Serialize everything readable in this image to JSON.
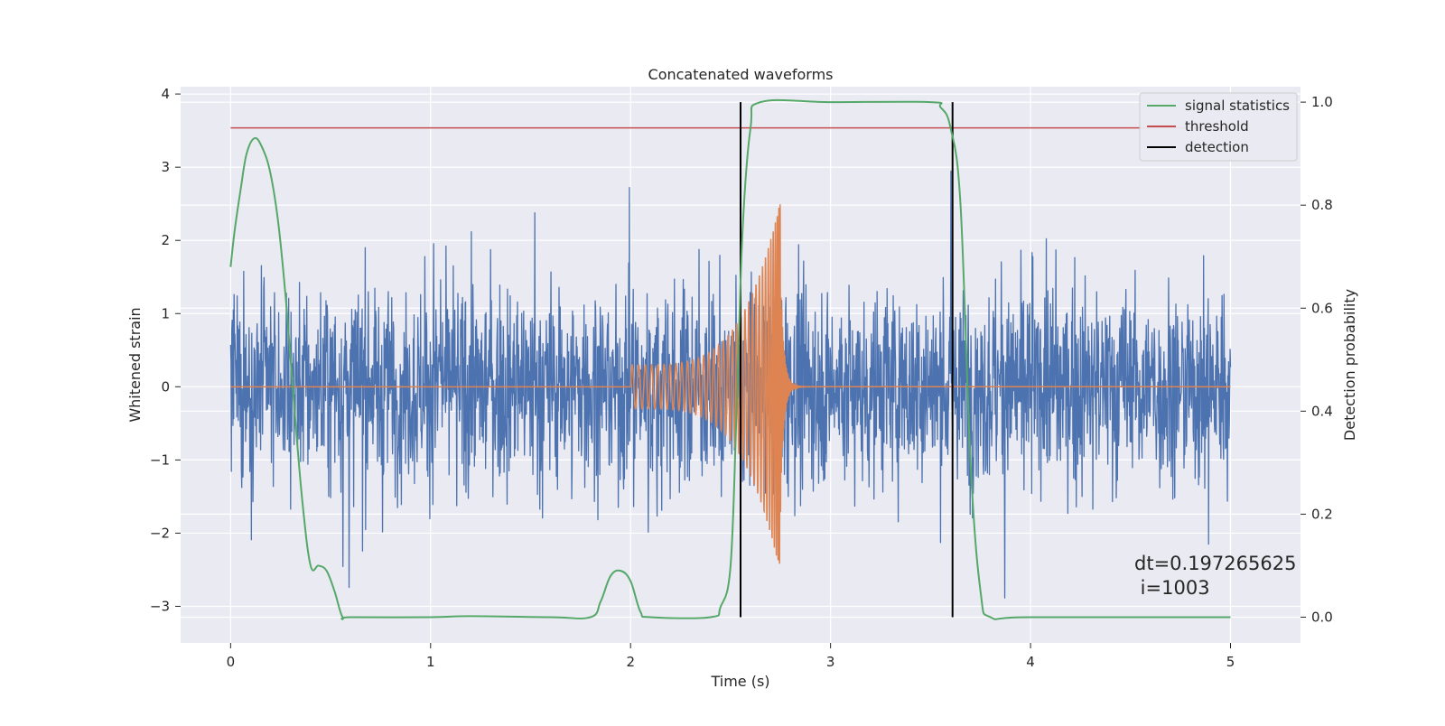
{
  "chart_data": {
    "type": "line",
    "title": "Concatenated waveforms",
    "xlabel": "Time (s)",
    "ylabel": "Whitened strain",
    "y2label": "Detection probability",
    "xlim": [
      -0.25,
      5.35
    ],
    "ylim": [
      -3.5,
      4.1
    ],
    "y2lim": [
      -0.05,
      1.03
    ],
    "x_ticks": [
      0,
      1,
      2,
      3,
      4,
      5
    ],
    "y_ticks": [
      -3,
      -2,
      -1,
      0,
      1,
      2,
      3,
      4
    ],
    "y2_ticks": [
      0.0,
      0.2,
      0.4,
      0.6,
      0.8,
      1.0
    ],
    "x_tick_labels": [
      "0",
      "1",
      "2",
      "3",
      "4",
      "5"
    ],
    "y_tick_labels": [
      "−3",
      "−2",
      "−1",
      "0",
      "1",
      "2",
      "3",
      "4"
    ],
    "y2_tick_labels": [
      "0.0",
      "0.2",
      "0.4",
      "0.6",
      "0.8",
      "1.0"
    ],
    "grid": true,
    "legend_position": "top-right",
    "colors": {
      "noise": "#4c72b0",
      "waveform": "#dd8452",
      "signal_statistics": "#55a868",
      "threshold": "#c44e52",
      "detection": "#000000",
      "background": "#eaeaf2",
      "grid": "#ffffff"
    },
    "series": [
      {
        "name": "signal statistics",
        "axis": "right",
        "x": [
          0,
          0.02,
          0.05,
          0.08,
          0.12,
          0.16,
          0.2,
          0.24,
          0.28,
          0.32,
          0.36,
          0.4,
          0.44,
          0.48,
          0.52,
          0.56,
          0.6,
          1.0,
          1.2,
          1.6,
          1.8,
          1.85,
          1.9,
          1.95,
          2.0,
          2.05,
          2.1,
          2.4,
          2.45,
          2.5,
          2.53,
          2.56,
          2.6,
          2.65,
          3.0,
          3.5,
          3.55,
          3.6,
          3.65,
          3.7,
          3.75,
          3.8,
          4.0,
          5.0
        ],
        "values": [
          0.68,
          0.75,
          0.83,
          0.9,
          0.93,
          0.91,
          0.86,
          0.76,
          0.6,
          0.4,
          0.22,
          0.1,
          0.1,
          0.09,
          0.05,
          0.0,
          0.0,
          0.0,
          0.002,
          0.0,
          0.0,
          0.03,
          0.08,
          0.09,
          0.07,
          0.01,
          0.0,
          0.0,
          0.02,
          0.1,
          0.4,
          0.75,
          0.95,
          1.0,
          1.0,
          1.0,
          0.99,
          0.95,
          0.8,
          0.3,
          0.05,
          0.0,
          0.0,
          0.0
        ]
      },
      {
        "name": "threshold",
        "axis": "right",
        "x": [
          0,
          5
        ],
        "values": [
          0.95,
          0.95
        ]
      },
      {
        "name": "detection",
        "axis": "right",
        "type": "vlines",
        "x": [
          2.55,
          3.61
        ],
        "y_range": [
          0.0,
          1.0
        ]
      },
      {
        "axis": "left",
        "kind": "noise",
        "x_range": [
          0,
          5
        ],
        "amplitude_range": [
          -3.2,
          3.8
        ]
      },
      {
        "axis": "left",
        "kind": "chirp",
        "x_range": [
          2.0,
          2.95
        ],
        "start_amplitude": 0.3,
        "peak_x": 2.75,
        "peak_amplitude": 2.55
      }
    ],
    "legend": [
      "signal statistics",
      "threshold",
      "detection"
    ],
    "annotation": {
      "line1": "dt=0.197265625",
      "line2": " i=1003"
    }
  }
}
